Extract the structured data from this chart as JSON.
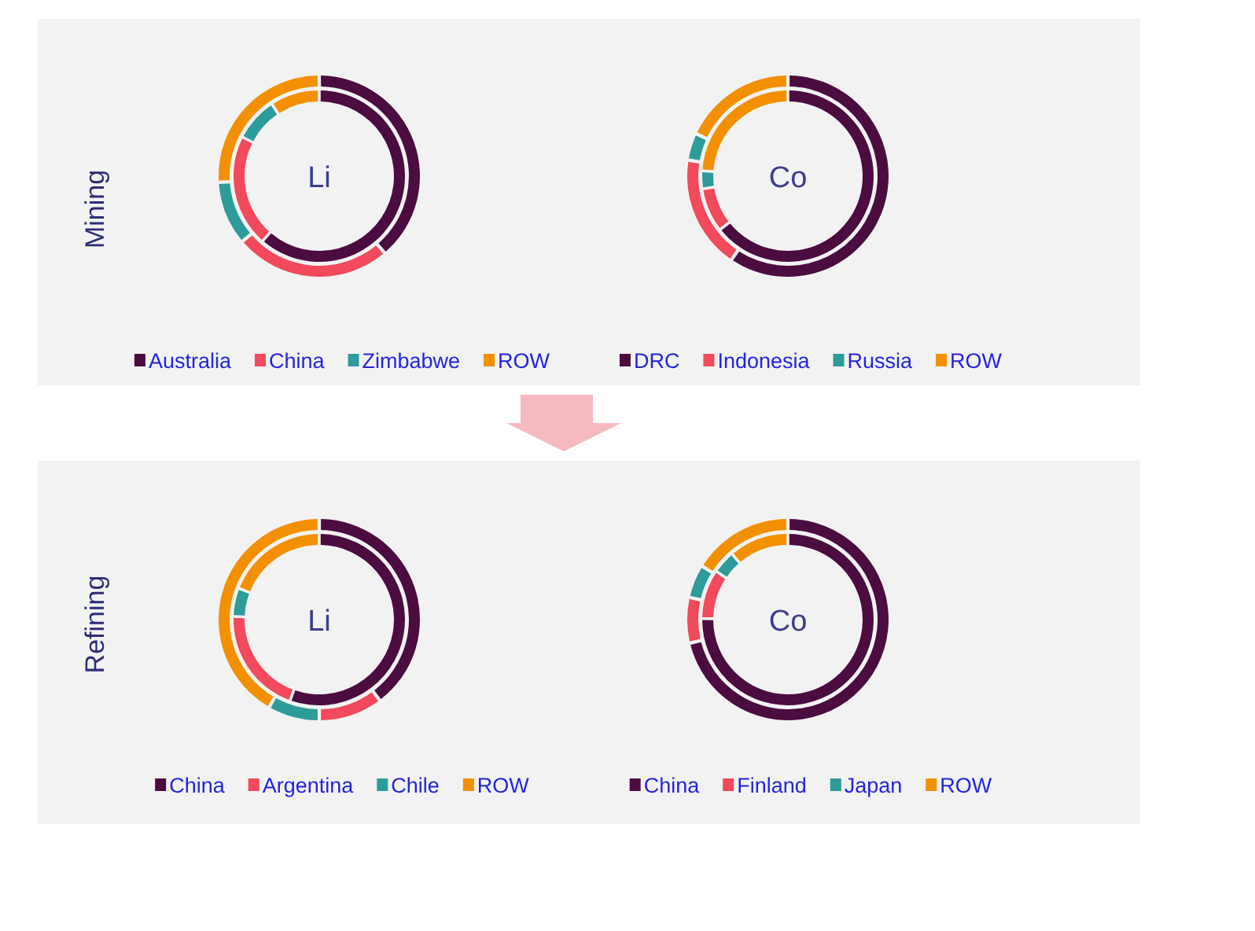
{
  "chart_data": [
    {
      "type": "donut",
      "title": "Li",
      "ylabel": "Mining",
      "categories": [
        "Australia",
        "China",
        "Zimbabwe",
        "ROW"
      ],
      "colors": [
        "#4b0c40",
        "#f2495c",
        "#2d9c98",
        "#f39000"
      ],
      "series": [
        {
          "values": [
            39,
            25,
            10,
            26
          ]
        },
        {
          "values": [
            62,
            21,
            8,
            9
          ]
        }
      ],
      "legend": "bottom"
    },
    {
      "type": "donut",
      "title": "Co",
      "categories": [
        "DRC",
        "Indonesia",
        "Russia",
        "ROW"
      ],
      "colors": [
        "#4b0c40",
        "#f2495c",
        "#2d9c98",
        "#f39000"
      ],
      "series": [
        {
          "values": [
            60,
            18,
            4,
            18
          ]
        },
        {
          "values": [
            65,
            8,
            3,
            24
          ]
        }
      ],
      "legend": "bottom"
    },
    {
      "type": "donut",
      "title": "Li",
      "ylabel": "Refining",
      "categories": [
        "China",
        "Argentina",
        "Chile",
        "ROW"
      ],
      "colors": [
        "#4b0c40",
        "#f2495c",
        "#2d9c98",
        "#f39000"
      ],
      "series": [
        {
          "values": [
            40,
            10,
            8,
            42
          ]
        },
        {
          "values": [
            56,
            20,
            5,
            19
          ]
        }
      ],
      "legend": "bottom"
    },
    {
      "type": "donut",
      "title": "Co",
      "categories": [
        "China",
        "Finland",
        "Japan",
        "ROW"
      ],
      "colors": [
        "#4b0c40",
        "#f2495c",
        "#2d9c98",
        "#f39000"
      ],
      "series": [
        {
          "values": [
            72,
            7,
            5,
            16
          ]
        },
        {
          "values": [
            76,
            9,
            4,
            11
          ]
        }
      ],
      "legend": "bottom"
    }
  ]
}
